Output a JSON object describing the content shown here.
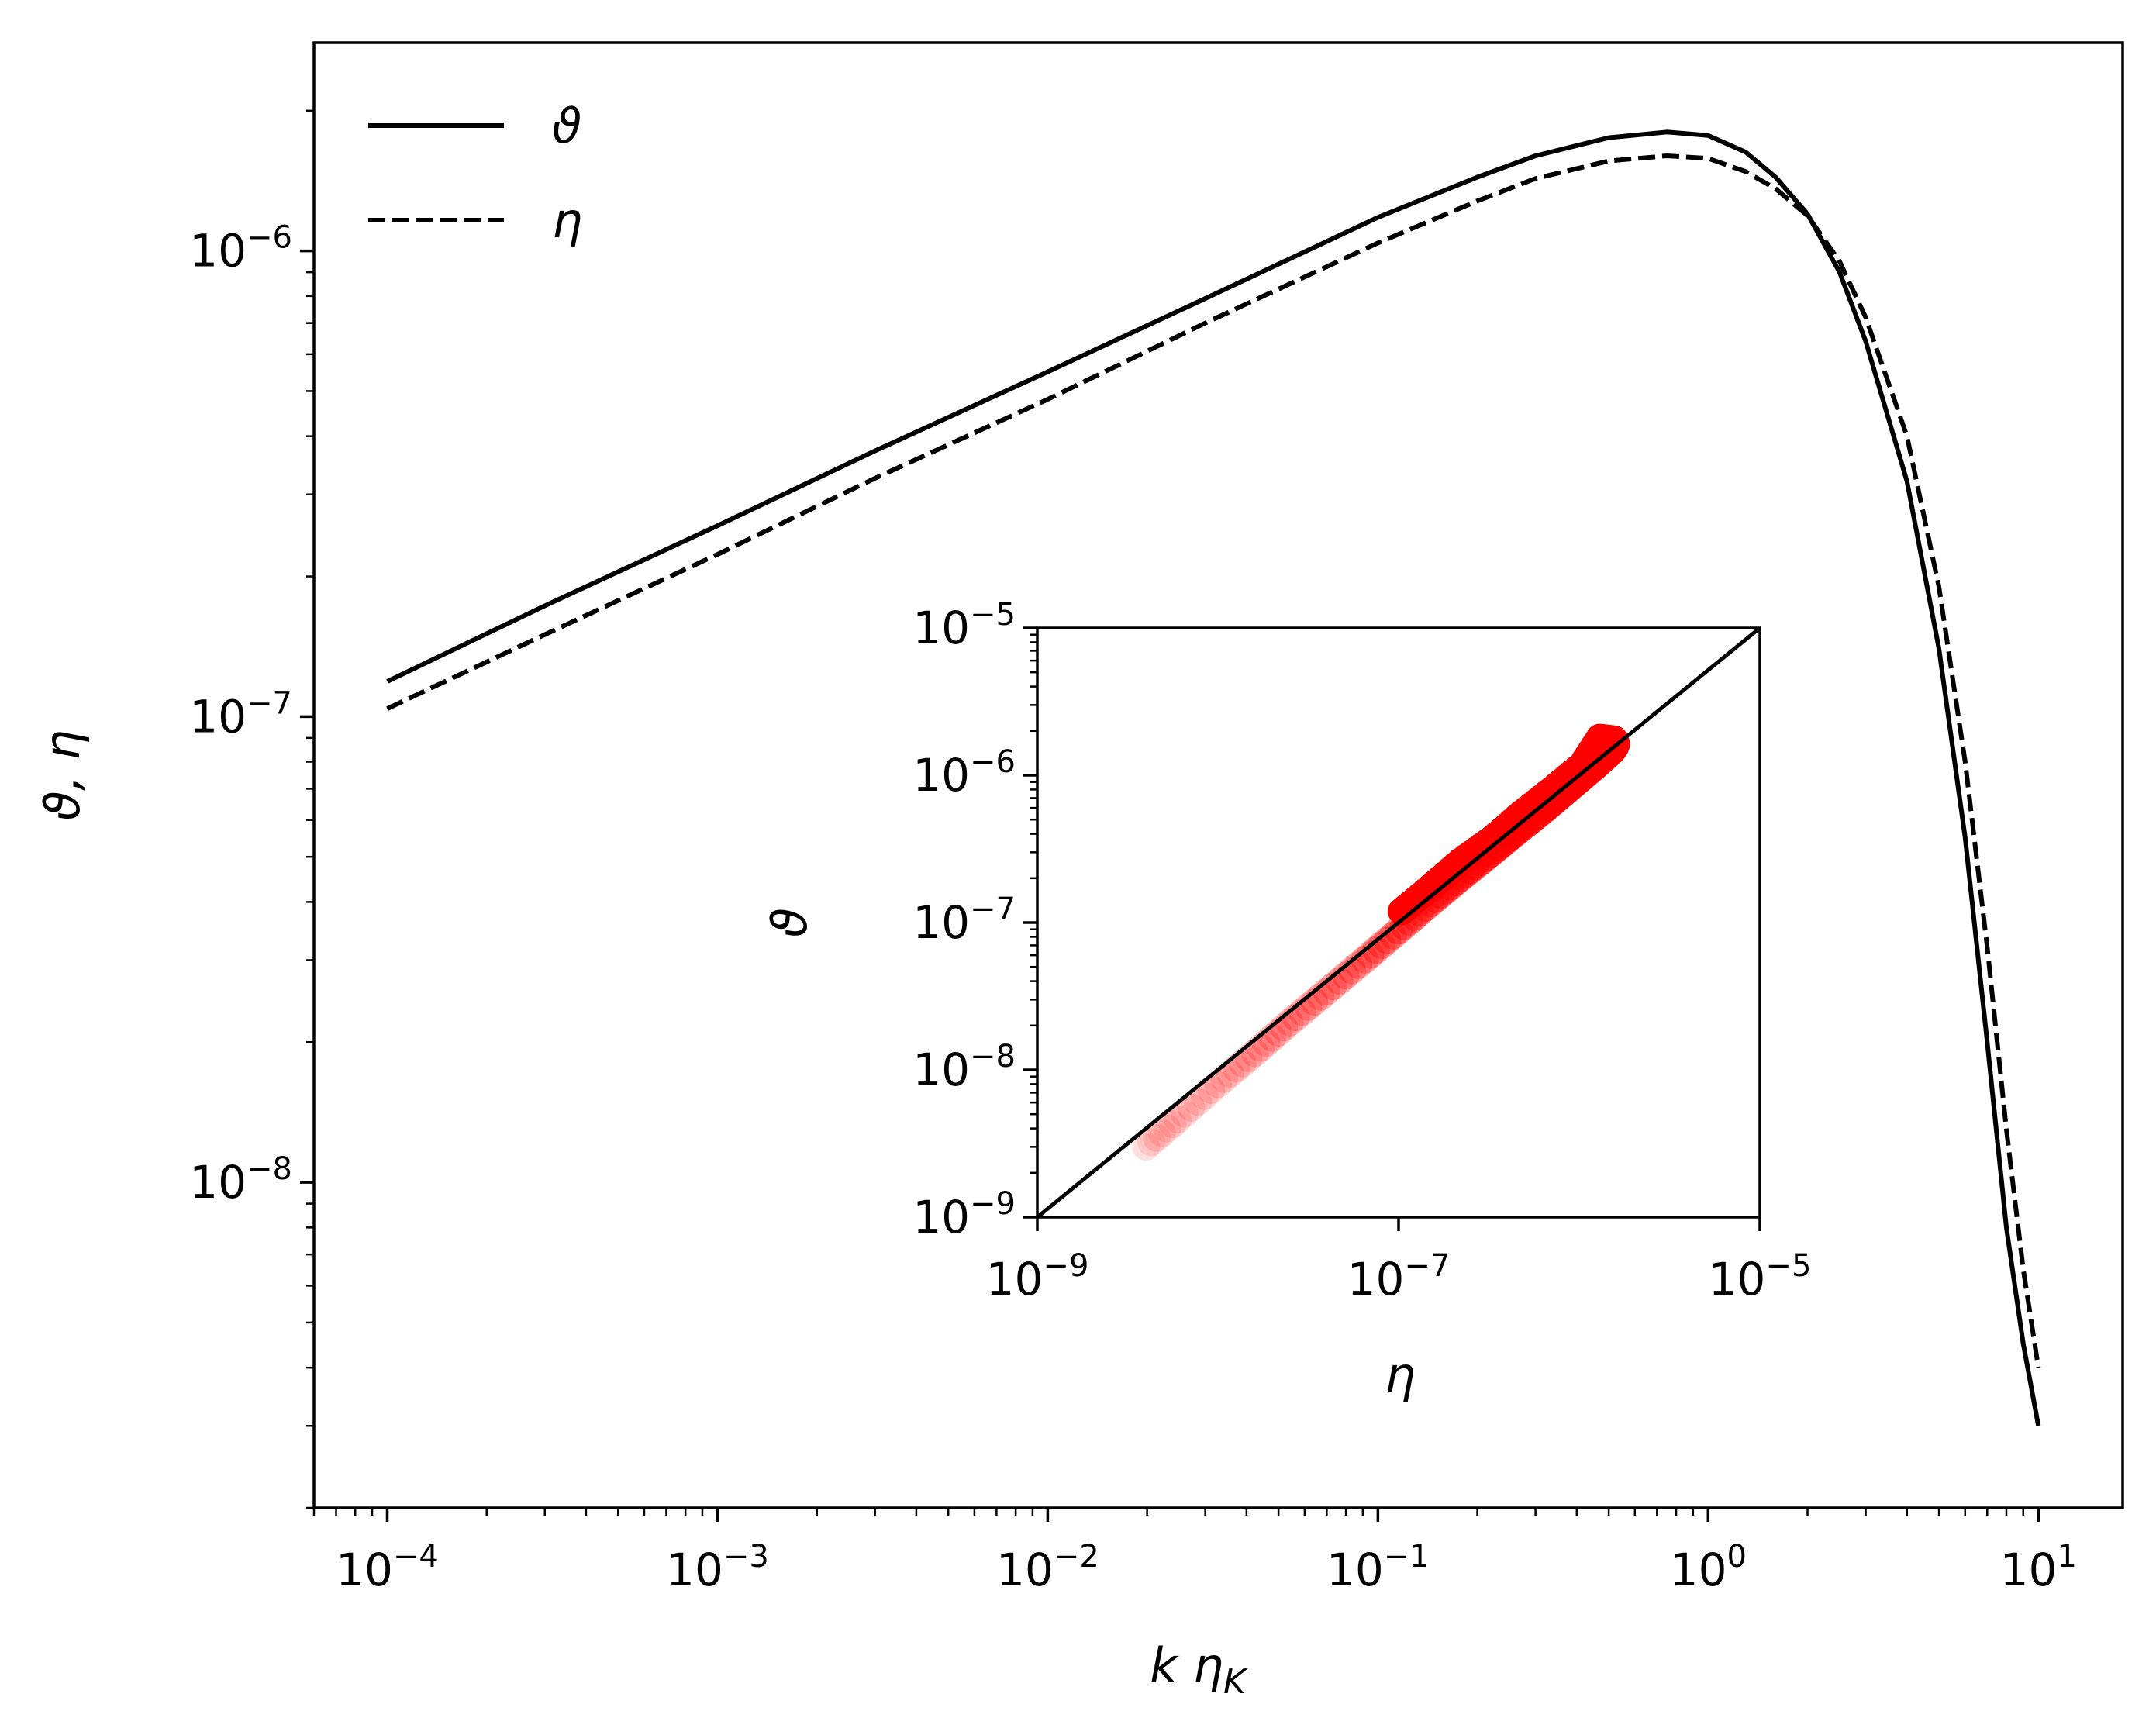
{
  "chart_data": [
    {
      "type": "line",
      "xlabel": "k η",
      "xlabel_sub": "K",
      "ylabel": "ϑ, η",
      "xscale": "log",
      "yscale": "log",
      "xlim": [
        6e-05,
        18
      ],
      "ylim": [
        2e-09,
        2.8e-06
      ],
      "x_ticks": [
        {
          "v": 0.0001,
          "base": "10",
          "exp": "−4"
        },
        {
          "v": 0.001,
          "base": "10",
          "exp": "−3"
        },
        {
          "v": 0.01,
          "base": "10",
          "exp": "−2"
        },
        {
          "v": 0.1,
          "base": "10",
          "exp": "−1"
        },
        {
          "v": 1,
          "base": "10",
          "exp": "0"
        },
        {
          "v": 10,
          "base": "10",
          "exp": "1"
        }
      ],
      "y_ticks": [
        {
          "v": 1e-08,
          "base": "10",
          "exp": "−8"
        },
        {
          "v": 1e-07,
          "base": "10",
          "exp": "−7"
        },
        {
          "v": 1e-06,
          "base": "10",
          "exp": "−6"
        }
      ],
      "legend": {
        "placement": "top-left"
      },
      "series": [
        {
          "name": "ϑ",
          "style": "solid",
          "color": "#000000",
          "x": [
            0.0001,
            0.0003,
            0.001,
            0.003,
            0.01,
            0.03,
            0.1,
            0.2,
            0.3,
            0.5,
            0.75,
            1.0,
            1.3,
            1.6,
            2.0,
            2.5,
            3.0,
            4.0,
            5.0,
            6.0,
            7.0,
            8.0,
            9.0,
            10.0
          ],
          "y": [
            1.19e-07,
            1.73e-07,
            2.57e-07,
            3.72e-07,
            5.5e-07,
            7.9e-07,
            1.18e-06,
            1.44e-06,
            1.6e-06,
            1.75e-06,
            1.8e-06,
            1.77e-06,
            1.63e-06,
            1.44e-06,
            1.2e-06,
            9e-07,
            6.4e-07,
            3.2e-07,
            1.4e-07,
            5.5e-08,
            2e-08,
            8e-09,
            4.5e-09,
            3e-09
          ]
        },
        {
          "name": "η",
          "style": "dashed",
          "color": "#000000",
          "x": [
            0.0001,
            0.0003,
            0.001,
            0.003,
            0.01,
            0.03,
            0.1,
            0.2,
            0.3,
            0.5,
            0.75,
            1.0,
            1.3,
            1.6,
            2.0,
            2.5,
            3.0,
            4.0,
            5.0,
            6.0,
            7.0,
            8.0,
            9.0,
            10.0
          ],
          "y": [
            1.04e-07,
            1.5e-07,
            2.23e-07,
            3.25e-07,
            4.8e-07,
            7e-07,
            1.04e-06,
            1.28e-06,
            1.43e-06,
            1.56e-06,
            1.6e-06,
            1.58e-06,
            1.48e-06,
            1.36e-06,
            1.19e-06,
            9.5e-07,
            7.2e-07,
            4e-07,
            1.9e-07,
            8e-08,
            3.2e-08,
            1.3e-08,
            6.5e-09,
            4e-09
          ]
        }
      ]
    },
    {
      "type": "scatter",
      "xlabel": "η",
      "ylabel": "ϑ",
      "xscale": "log",
      "yscale": "log",
      "xlim": [
        1e-09,
        1e-05
      ],
      "ylim": [
        1e-09,
        1e-05
      ],
      "x_ticks": [
        {
          "v": 1e-09,
          "base": "10",
          "exp": "−9"
        },
        {
          "v": 1e-07,
          "base": "10",
          "exp": "−7"
        },
        {
          "v": 1e-05,
          "base": "10",
          "exp": "−5"
        }
      ],
      "y_ticks": [
        {
          "v": 1e-09,
          "base": "10",
          "exp": "−9"
        },
        {
          "v": 1e-08,
          "base": "10",
          "exp": "−8"
        },
        {
          "v": 1e-07,
          "base": "10",
          "exp": "−7"
        },
        {
          "v": 1e-06,
          "base": "10",
          "exp": "−6"
        },
        {
          "v": 1e-05,
          "base": "10",
          "exp": "−5"
        }
      ],
      "reference_line": {
        "x": [
          1e-09,
          1e-05
        ],
        "y": [
          1e-09,
          1e-05
        ],
        "color": "#000000"
      },
      "point_color": "#ff0000",
      "points": {
        "x": [
          4e-09,
          6e-09,
          1e-08,
          1.6e-08,
          2.5e-08,
          4e-08,
          6.5e-08,
          1e-07,
          1.5e-07,
          2.2e-07,
          3.2e-07,
          4.5e-07,
          6.5e-07,
          9e-07,
          1.2e-06,
          1.4e-06,
          1.52e-06,
          1.58e-06,
          1.6e-06,
          1.56e-06,
          1.45e-06,
          1.3e-06,
          1.04e-06,
          7e-07,
          4.8e-07,
          3.3e-07,
          2.2e-07,
          1.5e-07,
          1.04e-07
        ],
        "y": [
          3e-09,
          4.6e-09,
          8e-09,
          1.3e-08,
          2.1e-08,
          3.4e-08,
          5.6e-08,
          8.8e-08,
          1.35e-07,
          2e-07,
          2.9e-07,
          4.1e-07,
          5.9e-07,
          8.3e-07,
          1.12e-06,
          1.33e-06,
          1.46e-06,
          1.56e-06,
          1.63e-06,
          1.75e-06,
          1.77e-06,
          1.8e-06,
          1.18e-06,
          7.9e-07,
          5.5e-07,
          3.7e-07,
          2.6e-07,
          1.73e-07,
          1.19e-07
        ],
        "alpha": [
          0.12,
          0.14,
          0.16,
          0.2,
          0.24,
          0.28,
          0.33,
          0.4,
          0.5,
          0.58,
          0.66,
          0.74,
          0.82,
          0.9,
          0.95,
          1.0,
          1.0,
          1.0,
          1.0,
          1.0,
          1.0,
          1.0,
          1.0,
          1.0,
          1.0,
          1.0,
          1.0,
          1.0,
          1.0
        ]
      }
    }
  ]
}
